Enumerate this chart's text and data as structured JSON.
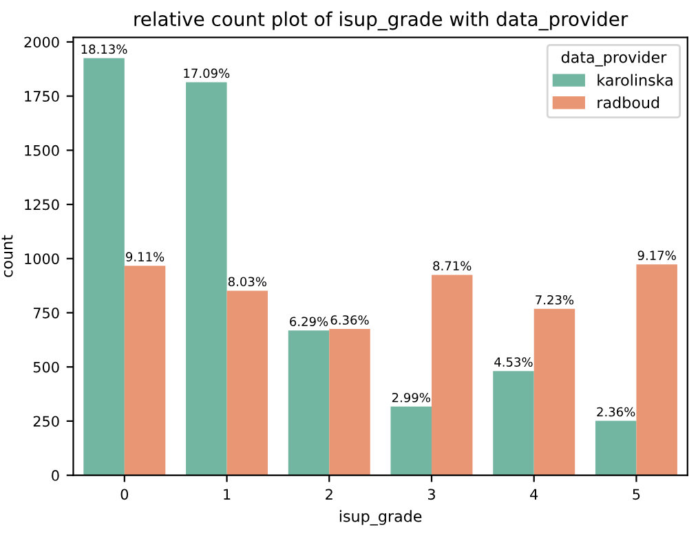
{
  "chart_data": {
    "type": "bar",
    "title": "relative count plot of isup_grade with data_provider",
    "xlabel": "isup_grade",
    "ylabel": "count",
    "legend_title": "data_provider",
    "categories": [
      "0",
      "1",
      "2",
      "3",
      "4",
      "5"
    ],
    "series": [
      {
        "name": "karolinska",
        "color": "#72b6a1",
        "values": [
          1925,
          1814,
          668,
          317,
          481,
          251
        ]
      },
      {
        "name": "radboud",
        "color": "#e99675",
        "values": [
          967,
          852,
          675,
          925,
          768,
          973
        ]
      }
    ],
    "annotations": [
      {
        "text": "18.13%",
        "x": "0",
        "y": 1925
      },
      {
        "text": "17.09%",
        "x": "1",
        "y": 1814
      },
      {
        "text": "6.29%",
        "x": "2",
        "y": 668
      },
      {
        "text": "2.99%",
        "x": "3",
        "y": 317
      },
      {
        "text": "4.53%",
        "x": "4",
        "y": 481
      },
      {
        "text": "2.36%",
        "x": "5",
        "y": 251
      },
      {
        "text": "9.11%",
        "x": "0",
        "y": 967
      },
      {
        "text": "8.03%",
        "x": "1",
        "y": 852
      },
      {
        "text": "6.36%",
        "x": "2",
        "y": 675
      },
      {
        "text": "8.71%",
        "x": "3",
        "y": 925
      },
      {
        "text": "7.23%",
        "x": "4",
        "y": 768
      },
      {
        "text": "9.17%",
        "x": "5",
        "y": 973
      }
    ],
    "ylim": [
      0,
      2021
    ],
    "yticks": [
      0,
      250,
      500,
      750,
      1000,
      1250,
      1500,
      1750,
      2000
    ],
    "grid": false,
    "legend": "top right"
  }
}
